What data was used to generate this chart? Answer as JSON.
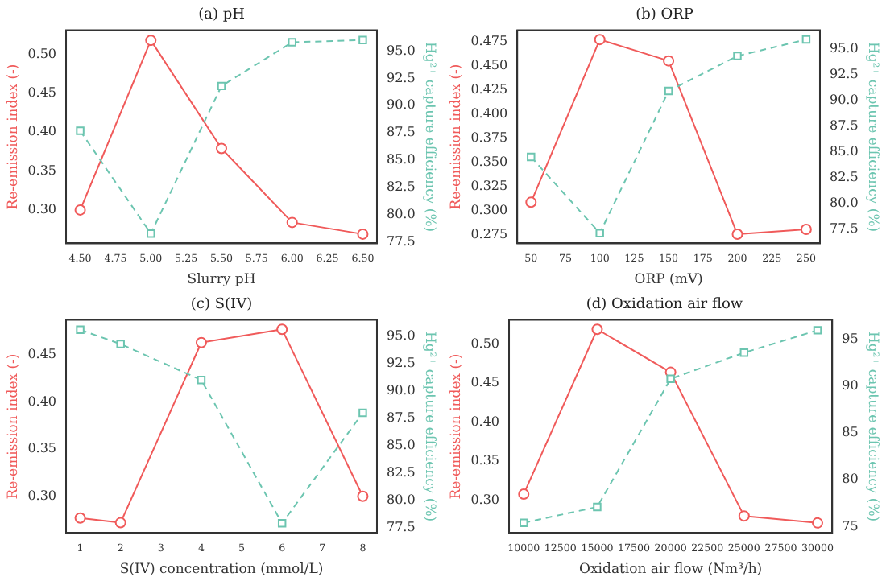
{
  "chart_data": [
    {
      "type": "line",
      "title": "(a) pH",
      "xlabel": "Slurry pH",
      "ylabel": "Re-emission index (-)",
      "y2label": "Hg²⁺ capture efficiency (%)",
      "grid": false,
      "legend": false,
      "x": [
        4.5,
        5.0,
        5.5,
        6.0,
        6.5
      ],
      "xlim": [
        4.4,
        6.6
      ],
      "xticks": [
        {
          "value": 4.5,
          "label": "4.50"
        },
        {
          "value": 4.75,
          "label": "4.75"
        },
        {
          "value": 5,
          "label": "5.00"
        },
        {
          "value": 5.25,
          "label": "5.25"
        },
        {
          "value": 5.5,
          "label": "5.50"
        },
        {
          "value": 5.75,
          "label": "5.75"
        },
        {
          "value": 6,
          "label": "6.00"
        },
        {
          "value": 6.25,
          "label": "6.25"
        },
        {
          "value": 6.5,
          "label": "6.50"
        }
      ],
      "ylim": [
        0.257,
        0.531
      ],
      "yticks": [
        {
          "value": 0.3,
          "label": "0.30"
        },
        0.35,
        {
          "value": 0.4,
          "label": "0.40"
        },
        0.45,
        {
          "value": 0.5,
          "label": "0.50"
        }
      ],
      "y2lim": [
        77.4,
        96.9
      ],
      "y2ticks": [
        77.5,
        {
          "value": 80,
          "label": "80.0"
        },
        82.5,
        {
          "value": 85,
          "label": "85.0"
        },
        87.5,
        {
          "value": 90,
          "label": "90.0"
        },
        92.5,
        {
          "value": 95,
          "label": "95.0"
        }
      ],
      "series": [
        {
          "color": "#f05a5a",
          "marker": "circle",
          "line_style": "solid",
          "values": [
            0.3,
            0.518,
            0.379,
            0.284,
            0.269
          ]
        },
        {
          "color": "#6cc5b0",
          "marker": "square",
          "line_style": "dashed",
          "axis": "y2",
          "values": [
            87.7,
            78.3,
            91.8,
            95.8,
            96.0
          ]
        }
      ]
    },
    {
      "type": "line",
      "title": "(b) ORP",
      "xlabel": "ORP (mV)",
      "ylabel": "Re-emission index (-)",
      "y2label": "Hg²⁺ capture efficiency (%)",
      "grid": false,
      "legend": false,
      "x": [
        50,
        100,
        150,
        200,
        250
      ],
      "xlim": [
        40,
        260
      ],
      "xticks": [
        50,
        75,
        100,
        125,
        150,
        175,
        200,
        225,
        250
      ],
      "ylim": [
        0.2665,
        0.4866
      ],
      "yticks": [
        0.275,
        {
          "value": 0.3,
          "label": "0.300"
        },
        0.325,
        {
          "value": 0.35,
          "label": "0.350"
        },
        0.375,
        {
          "value": 0.4,
          "label": "0.400"
        },
        0.425,
        {
          "value": 0.45,
          "label": "0.450"
        },
        0.475
      ],
      "y2lim": [
        76.1,
        96.8
      ],
      "y2ticks": [
        77.5,
        {
          "value": 80,
          "label": "80.0"
        },
        82.5,
        {
          "value": 85,
          "label": "85.0"
        },
        87.5,
        {
          "value": 90,
          "label": "90.0"
        },
        92.5,
        {
          "value": 95,
          "label": "95.0"
        }
      ],
      "series": [
        {
          "color": "#f05a5a",
          "marker": "circle",
          "line_style": "solid",
          "values": [
            0.309,
            0.477,
            0.455,
            0.276,
            0.281
          ]
        },
        {
          "color": "#6cc5b0",
          "marker": "square",
          "line_style": "dashed",
          "axis": "y2",
          "values": [
            84.5,
            77.1,
            90.9,
            94.3,
            95.9
          ]
        }
      ]
    },
    {
      "type": "line",
      "title": "(c) S(IV)",
      "xlabel": "S(IV) concentration (mmol/L)",
      "ylabel": "Re-emission index (-)",
      "y2label": "Hg²⁺ capture efficiency (%)",
      "grid": false,
      "legend": false,
      "x": [
        1,
        2,
        4,
        6,
        8
      ],
      "xlim": [
        0.65,
        8.35
      ],
      "xticks": [
        1,
        2,
        3,
        4,
        5,
        6,
        7,
        8
      ],
      "ylim": [
        0.261,
        0.487
      ],
      "yticks": [
        {
          "value": 0.3,
          "label": "0.30"
        },
        0.35,
        {
          "value": 0.4,
          "label": "0.40"
        },
        0.45
      ],
      "y2lim": [
        77.0,
        96.5
      ],
      "y2ticks": [
        77.5,
        {
          "value": 80,
          "label": "80.0"
        },
        82.5,
        {
          "value": 85,
          "label": "85.0"
        },
        87.5,
        {
          "value": 90,
          "label": "90.0"
        },
        92.5,
        {
          "value": 95,
          "label": "95.0"
        }
      ],
      "series": [
        {
          "color": "#f05a5a",
          "marker": "circle",
          "line_style": "solid",
          "values": [
            0.277,
            0.272,
            0.463,
            0.477,
            0.3
          ]
        },
        {
          "color": "#6cc5b0",
          "marker": "square",
          "line_style": "dashed",
          "axis": "y2",
          "values": [
            95.6,
            94.3,
            91.0,
            77.9,
            88.0
          ]
        }
      ]
    },
    {
      "type": "line",
      "title": "(d) Oxidation air flow",
      "xlabel": "Oxidation air flow (Nm³/h)",
      "ylabel": "Re-emission index (-)",
      "y2label": "Hg²⁺ capture efficiency (%)",
      "grid": false,
      "legend": false,
      "x": [
        10000,
        15000,
        20000,
        25000,
        30000
      ],
      "xlim": [
        9000,
        31000
      ],
      "xticks": [
        10000,
        12500,
        15000,
        17500,
        20000,
        22500,
        25000,
        27500,
        30000
      ],
      "ylim": [
        0.258,
        0.531
      ],
      "yticks": [
        {
          "value": 0.3,
          "label": "0.30"
        },
        0.35,
        {
          "value": 0.4,
          "label": "0.40"
        },
        0.45,
        {
          "value": 0.5,
          "label": "0.50"
        }
      ],
      "y2lim": [
        74.3,
        97.1
      ],
      "y2ticks": [
        75,
        80,
        85,
        90,
        95
      ],
      "series": [
        {
          "color": "#f05a5a",
          "marker": "circle",
          "line_style": "solid",
          "values": [
            0.308,
            0.519,
            0.464,
            0.28,
            0.271
          ]
        },
        {
          "color": "#6cc5b0",
          "marker": "square",
          "line_style": "dashed",
          "axis": "y2",
          "values": [
            75.4,
            77.1,
            90.8,
            93.6,
            96.0
          ]
        }
      ]
    }
  ]
}
